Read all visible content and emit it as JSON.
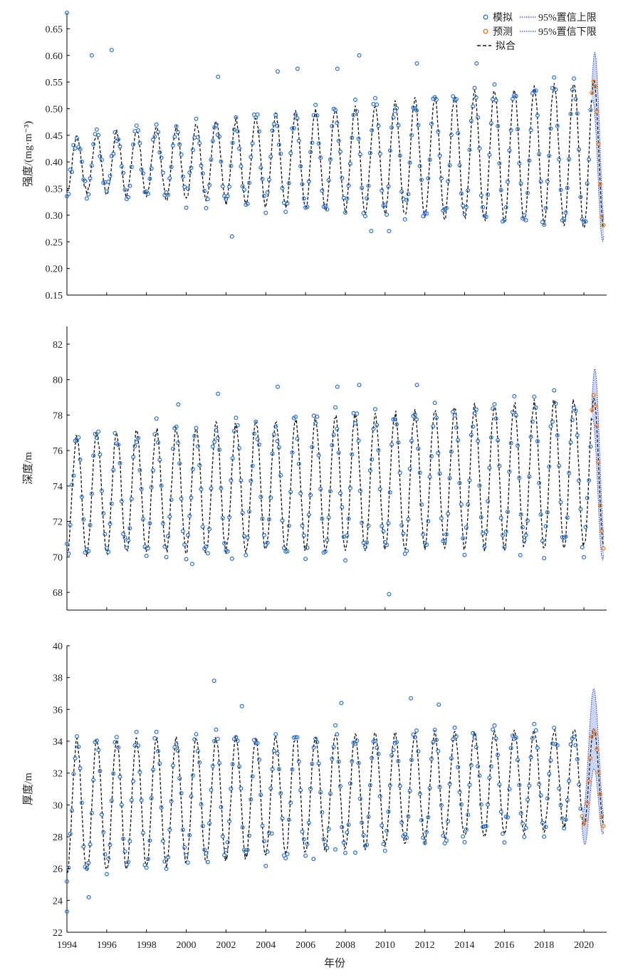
{
  "figure": {
    "xlabel": "年份",
    "xticks": [
      "1994",
      "1996",
      "1998",
      "2000",
      "2002",
      "2004",
      "2006",
      "2008",
      "2010",
      "2012",
      "2014",
      "2016",
      "2018",
      "2020"
    ],
    "legend": {
      "simulated": "模拟",
      "predicted": "预测",
      "fit": "拟合",
      "upper": "95%置信上限",
      "lower": "95%置信下限"
    }
  },
  "colors": {
    "simulated": "#2f6fc0",
    "predicted": "#e8782b",
    "fit": "#111111",
    "band": "#b9c6ec",
    "bound": "#3046b8"
  },
  "chart_data": [
    {
      "id": "intensity",
      "type": "line",
      "ylabel": "强度/(mg·m⁻³)",
      "ylim": [
        0.15,
        0.68
      ],
      "yticks": [
        "0.15",
        "0.20",
        "0.25",
        "0.30",
        "0.35",
        "0.40",
        "0.45",
        "0.50",
        "0.55",
        "0.60",
        "0.65"
      ],
      "x_range": [
        1994.0,
        2021.0
      ],
      "season": {
        "base_start": 0.395,
        "base_end": 0.415,
        "amp_start": 0.05,
        "amp_end": 0.14
      },
      "highlights": [
        {
          "x": 1994.0,
          "y": 0.68
        },
        {
          "x": 1995.25,
          "y": 0.6
        },
        {
          "x": 1996.25,
          "y": 0.61
        },
        {
          "x": 2001.6,
          "y": 0.56
        },
        {
          "x": 2002.3,
          "y": 0.26
        },
        {
          "x": 2004.6,
          "y": 0.57
        },
        {
          "x": 2005.6,
          "y": 0.575
        },
        {
          "x": 2007.6,
          "y": 0.575
        },
        {
          "x": 2008.7,
          "y": 0.6
        },
        {
          "x": 2009.3,
          "y": 0.27
        },
        {
          "x": 2010.2,
          "y": 0.27
        },
        {
          "x": 2011.6,
          "y": 0.585
        },
        {
          "x": 2014.6,
          "y": 0.585
        }
      ],
      "forecast": {
        "x": [
          2020.4,
          2021.0
        ],
        "upper_peak": 0.58,
        "lower_trough": 0.22
      }
    },
    {
      "id": "depth",
      "type": "line",
      "ylabel": "深度/m",
      "ylim": [
        67,
        83
      ],
      "yticks": [
        "68",
        "70",
        "72",
        "74",
        "76",
        "78",
        "80",
        "82"
      ],
      "x_range": [
        1994.0,
        2021.0
      ],
      "season": {
        "base_start": 73.5,
        "base_end": 74.8,
        "amp_start": 3.3,
        "amp_end": 4.2
      },
      "highlights": [
        {
          "x": 1999.6,
          "y": 78.6
        },
        {
          "x": 2000.3,
          "y": 69.6
        },
        {
          "x": 2001.6,
          "y": 79.2
        },
        {
          "x": 2002.3,
          "y": 69.9
        },
        {
          "x": 2004.6,
          "y": 79.6
        },
        {
          "x": 2007.6,
          "y": 79.6
        },
        {
          "x": 2008.7,
          "y": 79.7
        },
        {
          "x": 2010.2,
          "y": 67.9
        },
        {
          "x": 2011.6,
          "y": 79.7
        },
        {
          "x": 2016.8,
          "y": 70.1
        }
      ],
      "forecast": {
        "x": [
          2020.4,
          2021.0
        ],
        "upper_peak": 80.6,
        "lower_trough": 69.3
      }
    },
    {
      "id": "thickness",
      "type": "line",
      "ylabel": "厚度/m",
      "ylim": [
        22,
        40
      ],
      "yticks": [
        "22",
        "24",
        "26",
        "28",
        "30",
        "32",
        "34",
        "36",
        "38",
        "40"
      ],
      "x_range": [
        1994.0,
        2021.0
      ],
      "season": {
        "base_start": 29.8,
        "base_end": 31.8,
        "amp_start": 4.2,
        "amp_end": 3.0
      },
      "highlights": [
        {
          "x": 1994.0,
          "y": 23.3
        },
        {
          "x": 1995.1,
          "y": 24.2
        },
        {
          "x": 2001.4,
          "y": 37.8
        },
        {
          "x": 2002.8,
          "y": 36.2
        },
        {
          "x": 2004.3,
          "y": 28.2
        },
        {
          "x": 2006.4,
          "y": 26.6
        },
        {
          "x": 2007.5,
          "y": 27.2
        },
        {
          "x": 2008.5,
          "y": 27.0
        },
        {
          "x": 2007.8,
          "y": 36.4
        },
        {
          "x": 2011.3,
          "y": 36.7
        },
        {
          "x": 2012.7,
          "y": 36.3
        }
      ],
      "forecast": {
        "x": [
          2019.9,
          2021.0
        ],
        "upper_peak": 38.3,
        "lower_trough": 26.5
      }
    }
  ]
}
